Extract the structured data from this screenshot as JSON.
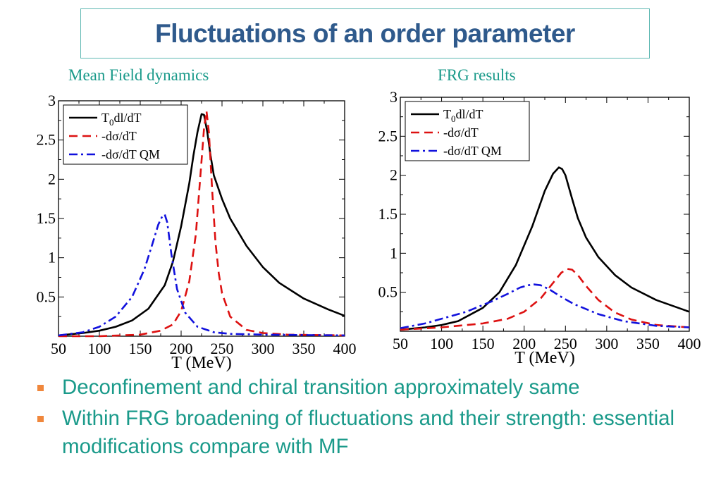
{
  "title": "Fluctuations of an order parameter",
  "panels": [
    "Mean Field dynamics",
    "FRG results"
  ],
  "bullets": [
    "Deconfinement and chiral transition approximately same",
    "Within FRG broadening of fluctuations  and their strength:  essential modifications  compare with MF"
  ],
  "colors": {
    "title": "#2f5a8c",
    "text": "#1a9a8a",
    "bullet": "#f0873c",
    "series": [
      "#000000",
      "#dd1111",
      "#1111dd"
    ]
  },
  "chart_data": [
    {
      "type": "line",
      "title": "Mean Field dynamics",
      "xlabel": "T (MeV)",
      "ylabel": "",
      "xlim": [
        50,
        400
      ],
      "ylim": [
        0,
        3
      ],
      "xticks": [
        50,
        100,
        150,
        200,
        250,
        300,
        350,
        400
      ],
      "yticks": [
        0.5,
        1,
        1.5,
        2,
        2.5,
        3
      ],
      "legend": "top-left",
      "series": [
        {
          "name": "T0dl/dT",
          "style": "solid",
          "color": "#000000",
          "x": [
            50,
            80,
            100,
            120,
            140,
            160,
            180,
            190,
            200,
            210,
            215,
            220,
            225,
            228,
            232,
            236,
            240,
            250,
            260,
            280,
            300,
            320,
            350,
            380,
            400
          ],
          "y": [
            0.01,
            0.04,
            0.07,
            0.12,
            0.2,
            0.35,
            0.65,
            0.95,
            1.4,
            1.95,
            2.3,
            2.6,
            2.83,
            2.82,
            2.6,
            2.3,
            2.05,
            1.75,
            1.5,
            1.15,
            0.88,
            0.68,
            0.48,
            0.34,
            0.26
          ]
        },
        {
          "name": "-dσ/dT",
          "style": "dashed",
          "color": "#dd1111",
          "x": [
            50,
            100,
            150,
            175,
            190,
            200,
            210,
            218,
            224,
            228,
            231,
            234,
            238,
            242,
            246,
            250,
            260,
            280,
            300,
            330,
            400
          ],
          "y": [
            0.0,
            0.0,
            0.02,
            0.07,
            0.15,
            0.32,
            0.7,
            1.3,
            2.1,
            2.65,
            2.87,
            2.6,
            1.85,
            1.2,
            0.8,
            0.55,
            0.25,
            0.08,
            0.04,
            0.02,
            0.01
          ]
        },
        {
          "name": "-dσ/dT QM",
          "style": "dashdot",
          "color": "#1111dd",
          "x": [
            50,
            80,
            100,
            120,
            140,
            155,
            165,
            172,
            177,
            180,
            183,
            188,
            195,
            205,
            220,
            240,
            260,
            300,
            400
          ],
          "y": [
            0.01,
            0.05,
            0.12,
            0.25,
            0.5,
            0.85,
            1.18,
            1.42,
            1.53,
            1.55,
            1.45,
            1.05,
            0.6,
            0.3,
            0.12,
            0.05,
            0.03,
            0.02,
            0.01
          ]
        }
      ]
    },
    {
      "type": "line",
      "title": "FRG results",
      "xlabel": "T (MeV)",
      "ylabel": "",
      "xlim": [
        50,
        400
      ],
      "ylim": [
        0,
        3
      ],
      "xticks": [
        50,
        100,
        150,
        200,
        250,
        300,
        350,
        400
      ],
      "yticks": [
        0.5,
        1,
        1.5,
        2,
        2.5,
        3
      ],
      "legend": "top-left",
      "series": [
        {
          "name": "T0dl/dT",
          "style": "solid",
          "color": "#000000",
          "x": [
            50,
            80,
            100,
            120,
            150,
            170,
            190,
            210,
            225,
            235,
            242,
            246,
            250,
            258,
            265,
            275,
            290,
            310,
            330,
            360,
            400
          ],
          "y": [
            0.02,
            0.05,
            0.08,
            0.13,
            0.3,
            0.5,
            0.85,
            1.35,
            1.8,
            2.02,
            2.1,
            2.08,
            2.0,
            1.7,
            1.45,
            1.2,
            0.95,
            0.72,
            0.56,
            0.4,
            0.25
          ]
        },
        {
          "name": "-dσ/dT",
          "style": "dashed",
          "color": "#dd1111",
          "x": [
            50,
            100,
            150,
            180,
            200,
            220,
            235,
            245,
            252,
            258,
            265,
            275,
            290,
            310,
            330,
            360,
            400
          ],
          "y": [
            0.02,
            0.05,
            0.1,
            0.16,
            0.25,
            0.42,
            0.62,
            0.75,
            0.8,
            0.79,
            0.72,
            0.58,
            0.4,
            0.24,
            0.15,
            0.08,
            0.05
          ]
        },
        {
          "name": "-dσ/dT QM",
          "style": "dashdot",
          "color": "#1111dd",
          "x": [
            50,
            80,
            100,
            130,
            160,
            180,
            195,
            205,
            212,
            220,
            230,
            245,
            260,
            290,
            320,
            360,
            400
          ],
          "y": [
            0.04,
            0.1,
            0.16,
            0.25,
            0.38,
            0.48,
            0.56,
            0.59,
            0.6,
            0.59,
            0.54,
            0.44,
            0.35,
            0.22,
            0.13,
            0.07,
            0.05
          ]
        }
      ]
    }
  ]
}
